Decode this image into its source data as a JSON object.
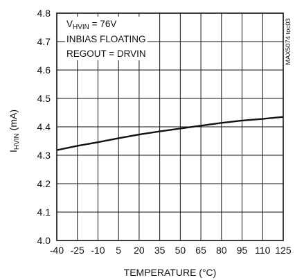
{
  "chart_data": {
    "type": "line",
    "title": "",
    "xlabel": "TEMPERATURE (°C)",
    "ylabel": {
      "main": "I",
      "sub": "HVIN",
      "rest": " (mA)"
    },
    "x_ticks": [
      -40,
      -25,
      -10,
      5,
      20,
      35,
      50,
      65,
      80,
      95,
      110,
      125
    ],
    "y_ticks": [
      "4.0",
      "4.1",
      "4.2",
      "4.3",
      "4.4",
      "4.5",
      "4.6",
      "4.7",
      "4.8"
    ],
    "xlim": [
      -40,
      125
    ],
    "ylim": [
      4.0,
      4.8
    ],
    "grid": true,
    "legend": "none",
    "annotations": {
      "line1": {
        "main": "V",
        "sub": "HVIN",
        "rest": " = 76V"
      },
      "line2": "INBIAS FLOATING",
      "line3": "REGOUT = DRVIN"
    },
    "side_tag": "MAX5074 toc03",
    "series": [
      {
        "x": [
          -40,
          -25,
          -10,
          5,
          20,
          35,
          50,
          65,
          80,
          95,
          110,
          125
        ],
        "y": [
          4.318,
          4.333,
          4.346,
          4.36,
          4.373,
          4.384,
          4.394,
          4.404,
          4.414,
          4.422,
          4.428,
          4.435
        ]
      }
    ]
  }
}
